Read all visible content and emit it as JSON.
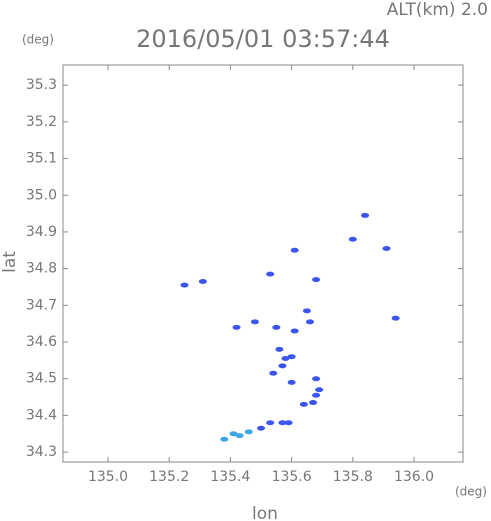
{
  "chart_data": {
    "type": "scatter",
    "header": "ALT(km) 2.0",
    "title": "2016/05/01 03:57:44",
    "y_unit": "(deg)",
    "x_unit": "(deg)",
    "xlabel": "lon",
    "ylabel": "lat",
    "xlim": [
      134.853,
      136.16
    ],
    "ylim": [
      34.273,
      35.355
    ],
    "xticks": [
      {
        "value": 135,
        "label": "135.0"
      },
      135.2,
      135.4,
      135.6,
      135.8,
      {
        "value": 136,
        "label": "136.0"
      }
    ],
    "yticks": [
      34.3,
      34.4,
      34.5,
      34.6,
      34.7,
      34.8,
      34.9,
      {
        "value": 35,
        "label": "35.0"
      },
      35.1,
      35.2,
      35.3
    ],
    "series": [
      {
        "color": "#3b55ee",
        "x": [
          135.25,
          135.31,
          135.84,
          135.8,
          135.91,
          135.94,
          135.61,
          135.53,
          135.68,
          135.42,
          135.48,
          135.55,
          135.61,
          135.65,
          135.66,
          135.56,
          135.58,
          135.6,
          135.57,
          135.54,
          135.6,
          135.68,
          135.69,
          135.68,
          135.67,
          135.64,
          135.59,
          135.57,
          135.53,
          135.5
        ],
        "y": [
          34.755,
          34.765,
          34.945,
          34.88,
          34.855,
          34.665,
          34.85,
          34.785,
          34.77,
          34.64,
          34.655,
          34.64,
          34.63,
          34.685,
          34.655,
          34.58,
          34.555,
          34.56,
          34.535,
          34.515,
          34.49,
          34.5,
          34.47,
          34.455,
          34.435,
          34.43,
          34.38,
          34.38,
          34.38,
          34.365
        ]
      },
      {
        "color": "#3aa6e8",
        "x": [
          135.46,
          135.43,
          135.41,
          135.38
        ],
        "y": [
          34.355,
          34.345,
          34.35,
          34.335
        ]
      }
    ]
  }
}
